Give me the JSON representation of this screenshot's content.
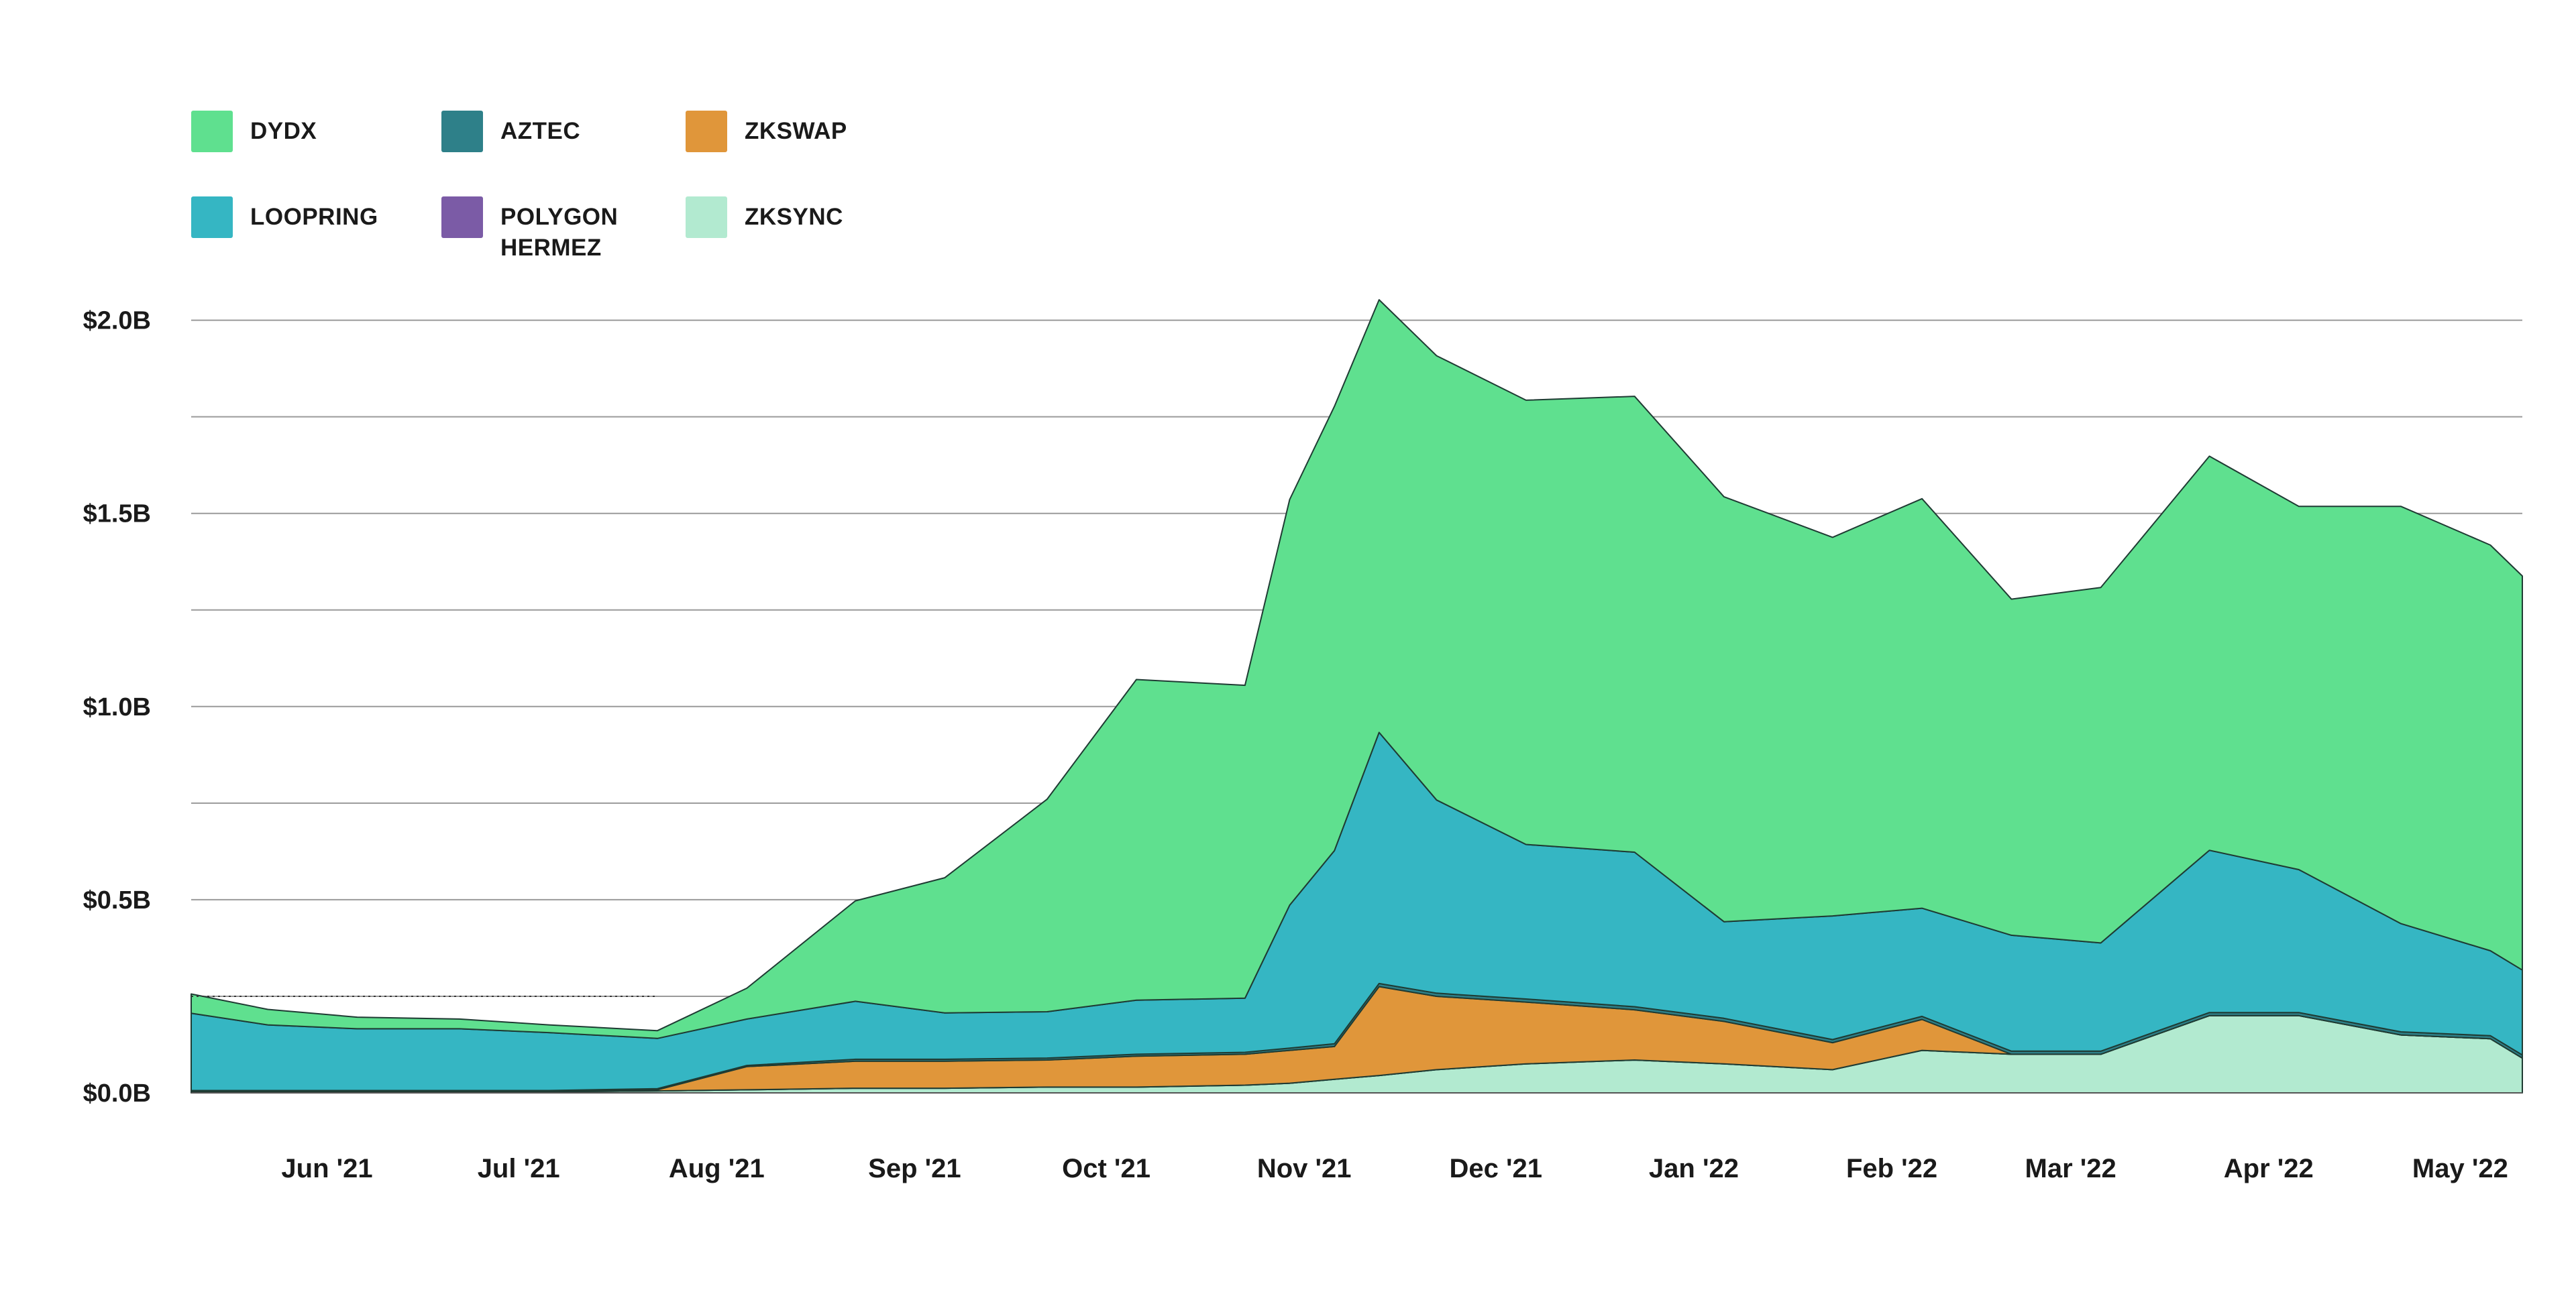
{
  "chart_data": {
    "type": "area",
    "stacked": true,
    "title": "",
    "xlabel": "",
    "ylabel": "",
    "ylim": [
      0,
      2.0
    ],
    "y_unit": "$B",
    "y_ticks": [
      {
        "value": 0.0,
        "label": "$0.0B"
      },
      {
        "value": 0.5,
        "label": "$0.5B"
      },
      {
        "value": 1.0,
        "label": "$1.0B"
      },
      {
        "value": 1.5,
        "label": "$1.5B"
      },
      {
        "value": 2.0,
        "label": "$2.0B"
      }
    ],
    "x_ticks": [
      "Jun '21",
      "Jul '21",
      "Aug '21",
      "Sep '21",
      "Oct '21",
      "Nov '21",
      "Dec '21",
      "Jan '22",
      "Feb '22",
      "Mar '22",
      "Apr '22",
      "May '22"
    ],
    "grid": true,
    "legend_position": "top-left",
    "x": [
      "2021-05-20",
      "2021-06-01",
      "2021-06-15",
      "2021-07-01",
      "2021-07-15",
      "2021-08-01",
      "2021-08-15",
      "2021-09-01",
      "2021-09-15",
      "2021-10-01",
      "2021-10-15",
      "2021-11-01",
      "2021-11-08",
      "2021-11-15",
      "2021-11-22",
      "2021-12-01",
      "2021-12-15",
      "2022-01-01",
      "2022-01-15",
      "2022-02-01",
      "2022-02-15",
      "2022-03-01",
      "2022-03-15",
      "2022-04-01",
      "2022-04-15",
      "2022-05-01",
      "2022-05-15",
      "2022-05-20"
    ],
    "series": [
      {
        "name": "ZKSYNC",
        "color": "#b2ead0",
        "values": [
          0.003,
          0.003,
          0.003,
          0.003,
          0.003,
          0.005,
          0.008,
          0.012,
          0.012,
          0.015,
          0.015,
          0.02,
          0.025,
          0.035,
          0.045,
          0.06,
          0.075,
          0.085,
          0.075,
          0.06,
          0.11,
          0.1,
          0.1,
          0.2,
          0.2,
          0.15,
          0.14,
          0.09
        ]
      },
      {
        "name": "POLYGON HERMEZ",
        "color": "#7b5ba6",
        "values": [
          0,
          0,
          0,
          0,
          0,
          0,
          0,
          0,
          0,
          0,
          0,
          0,
          0,
          0,
          0,
          0,
          0,
          0,
          0,
          0,
          0,
          0,
          0,
          0,
          0,
          0,
          0,
          0
        ]
      },
      {
        "name": "ZKSWAP",
        "color": "#e0963a",
        "values": [
          0,
          0,
          0,
          0,
          0,
          0.003,
          0.06,
          0.07,
          0.07,
          0.07,
          0.08,
          0.08,
          0.085,
          0.085,
          0.23,
          0.19,
          0.16,
          0.13,
          0.11,
          0.07,
          0.08,
          0,
          0,
          0,
          0,
          0,
          0,
          0
        ]
      },
      {
        "name": "AZTEC",
        "color": "#2e8089",
        "values": [
          0.003,
          0.003,
          0.003,
          0.003,
          0.003,
          0.003,
          0.003,
          0.005,
          0.005,
          0.005,
          0.005,
          0.005,
          0.006,
          0.007,
          0.008,
          0.008,
          0.008,
          0.008,
          0.008,
          0.008,
          0.008,
          0.008,
          0.008,
          0.008,
          0.008,
          0.008,
          0.008,
          0.008
        ]
      },
      {
        "name": "LOOPRING",
        "color": "#35b6c3",
        "values": [
          0.2,
          0.17,
          0.16,
          0.16,
          0.15,
          0.13,
          0.12,
          0.15,
          0.12,
          0.12,
          0.14,
          0.14,
          0.37,
          0.5,
          0.65,
          0.5,
          0.4,
          0.4,
          0.25,
          0.32,
          0.28,
          0.3,
          0.28,
          0.42,
          0.37,
          0.28,
          0.22,
          0.22
        ]
      },
      {
        "name": "DYDX",
        "color": "#5fe08f",
        "values": [
          0.05,
          0.04,
          0.03,
          0.025,
          0.02,
          0.02,
          0.08,
          0.26,
          0.35,
          0.55,
          0.83,
          0.81,
          1.05,
          1.15,
          1.12,
          1.15,
          1.15,
          1.18,
          1.1,
          0.98,
          1.06,
          0.87,
          0.92,
          1.02,
          0.94,
          1.08,
          1.05,
          1.02
        ]
      }
    ],
    "annotations": [
      {
        "type": "dotted-line",
        "y": 0.25,
        "x_from": "2021-05-20",
        "x_to": "2021-08-01"
      }
    ]
  },
  "legend": [
    {
      "key": "dydx",
      "label": "DYDX",
      "color": "#5fe08f"
    },
    {
      "key": "aztec",
      "label": "AZTEC",
      "color": "#2e8089"
    },
    {
      "key": "zkswap",
      "label": "ZKSWAP",
      "color": "#e0963a"
    },
    {
      "key": "loopring",
      "label": "LOOPRING",
      "color": "#35b6c3"
    },
    {
      "key": "polygon-hermez",
      "label": "POLYGON\nHERMEZ",
      "color": "#7b5ba6"
    },
    {
      "key": "zksync",
      "label": "ZKSYNC",
      "color": "#b2ead0"
    }
  ]
}
